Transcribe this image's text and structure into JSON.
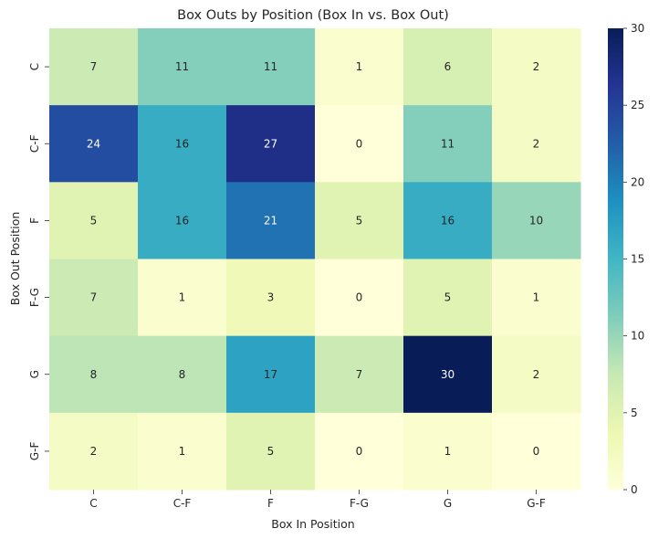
{
  "chart_data": {
    "type": "heatmap",
    "title": "Box Outs by Position (Box In vs. Box Out)",
    "xlabel": "Box In Position",
    "ylabel": "Box Out Position",
    "x_categories": [
      "C",
      "C-F",
      "F",
      "F-G",
      "G",
      "G-F"
    ],
    "y_categories": [
      "C",
      "C-F",
      "F",
      "F-G",
      "G",
      "G-F"
    ],
    "values": [
      [
        7,
        11,
        11,
        1,
        6,
        2
      ],
      [
        24,
        16,
        27,
        0,
        11,
        2
      ],
      [
        5,
        16,
        21,
        5,
        16,
        10
      ],
      [
        7,
        1,
        3,
        0,
        5,
        1
      ],
      [
        8,
        8,
        17,
        7,
        30,
        2
      ],
      [
        2,
        1,
        5,
        0,
        1,
        0
      ]
    ],
    "colorbar": {
      "colormap": "YlGnBu",
      "range": [
        0,
        30
      ],
      "ticks": [
        0,
        5,
        10,
        15,
        20,
        25,
        30
      ]
    },
    "grid": false
  }
}
